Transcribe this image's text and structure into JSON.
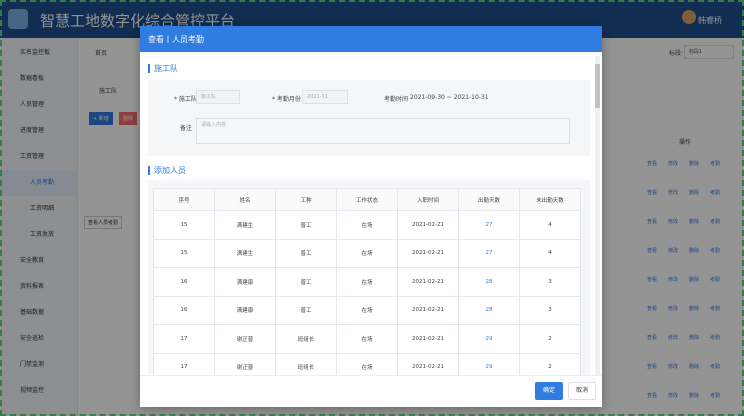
{
  "header": {
    "title": "智慧工地数字化综合管控平台",
    "user": "韩睿桥"
  },
  "sidebar": {
    "items": [
      "实名监控板",
      "数据看板",
      "人员管理",
      "进度管理",
      "工资管理",
      "人员考勤",
      "工资明细",
      "工资发放",
      "安全教育",
      "资料报表",
      "基础数据",
      "安全巡检",
      "门禁监测",
      "视频监控"
    ]
  },
  "background": {
    "breadcrumb": "首页",
    "filter_label": "施工队",
    "add_button": "+ 新增",
    "delete_button": "删除",
    "section_label": "标段:",
    "section_value": "标段1",
    "actions_header": "操作",
    "actions": [
      "查看",
      "修改",
      "删除",
      "考勤"
    ],
    "tooltip": "查看人员考勤"
  },
  "modal": {
    "title": "查看丨人员考勤",
    "section1": "施工队",
    "form": {
      "team_label": "* 施工队",
      "team_value": "施工队",
      "month_label": "* 考勤月份",
      "month_value": "2021-11",
      "period_label": "考勤时间",
      "period_value": "2021-09-30 ~ 2021-10-31",
      "remark_label": "备注",
      "remark_placeholder": "请输入内容"
    },
    "section2": "添加人员",
    "table": {
      "columns": [
        "序号",
        "姓名",
        "工种",
        "工作状态",
        "入职时间",
        "出勤天数",
        "未出勤天数"
      ],
      "rows": [
        [
          15,
          "满建生",
          "普工",
          "在场",
          "2021-02-21",
          27,
          4
        ],
        [
          15,
          "满建生",
          "普工",
          "在场",
          "2021-02-21",
          27,
          4
        ],
        [
          16,
          "满建康",
          "普工",
          "在场",
          "2021-02-21",
          28,
          3
        ],
        [
          16,
          "满建康",
          "普工",
          "在场",
          "2021-02-21",
          28,
          3
        ],
        [
          17,
          "谢正普",
          "班组长",
          "在场",
          "2021-02-21",
          29,
          2
        ],
        [
          17,
          "谢正普",
          "班组长",
          "在场",
          "2021-02-21",
          29,
          2
        ]
      ]
    },
    "buttons": {
      "confirm": "确定",
      "cancel": "取消"
    }
  }
}
